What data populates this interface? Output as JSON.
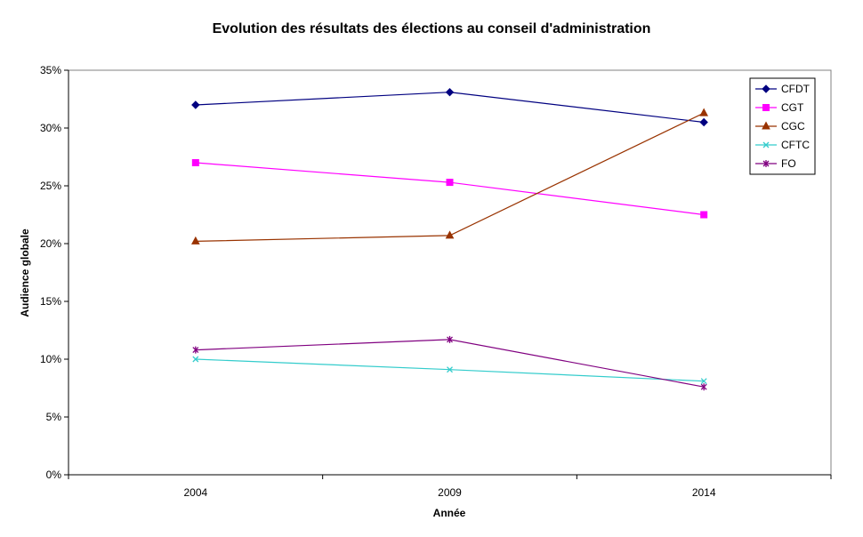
{
  "chart_data": {
    "type": "line",
    "title": "Evolution des résultats des élections au conseil d'administration",
    "xlabel": "Année",
    "ylabel": "Audience globale",
    "categories": [
      "2004",
      "2009",
      "2014"
    ],
    "ylim": [
      0,
      35
    ],
    "y_ticks": [
      0,
      5,
      10,
      15,
      20,
      25,
      30,
      35
    ],
    "y_tick_labels": [
      "0%",
      "5%",
      "10%",
      "15%",
      "20%",
      "25%",
      "30%",
      "35%"
    ],
    "grid": false,
    "legend_position": "top-right",
    "series": [
      {
        "name": "CFDT",
        "values": [
          32.0,
          33.1,
          30.5
        ],
        "color": "#000080",
        "marker": "diamond"
      },
      {
        "name": "CGT",
        "values": [
          27.0,
          25.3,
          22.5
        ],
        "color": "#FF00FF",
        "marker": "square"
      },
      {
        "name": "CGC",
        "values": [
          20.2,
          20.7,
          31.3
        ],
        "color": "#993300",
        "marker": "triangle"
      },
      {
        "name": "CFTC",
        "values": [
          10.0,
          9.1,
          8.1
        ],
        "color": "#33CCCC",
        "marker": "x"
      },
      {
        "name": "FO",
        "values": [
          10.8,
          11.7,
          7.6
        ],
        "color": "#800080",
        "marker": "star"
      }
    ]
  }
}
